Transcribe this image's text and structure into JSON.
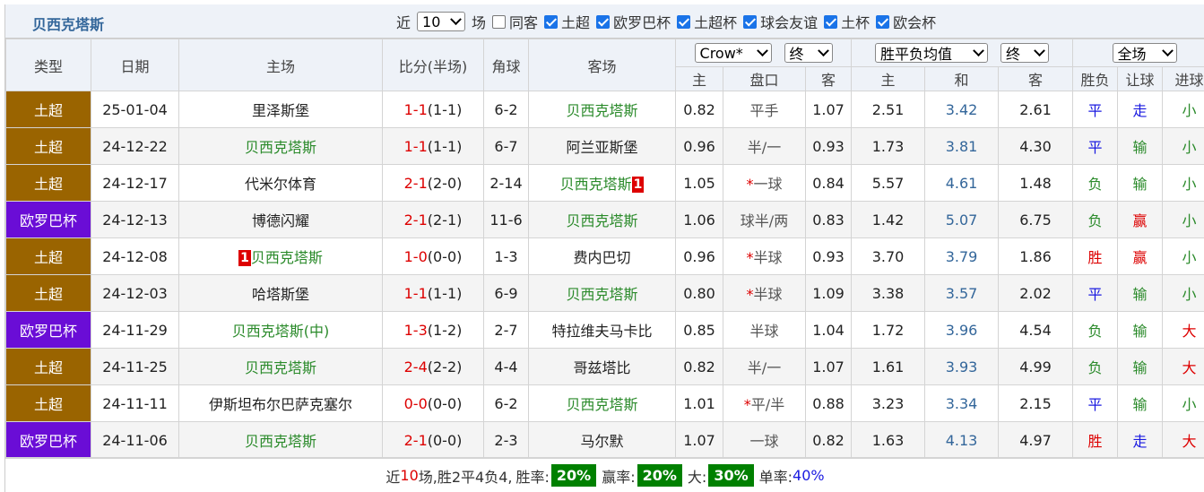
{
  "header": {
    "title": "贝西克塔斯",
    "near": "近",
    "count": "10",
    "unit": "场",
    "filters": [
      {
        "label": "同客",
        "checked": false
      },
      {
        "label": "土超",
        "checked": true
      },
      {
        "label": "欧罗巴杯",
        "checked": true
      },
      {
        "label": "土超杯",
        "checked": true
      },
      {
        "label": "球会友谊",
        "checked": true
      },
      {
        "label": "土杯",
        "checked": true
      },
      {
        "label": "欧会杯",
        "checked": true
      }
    ]
  },
  "columns": {
    "main": [
      "类型",
      "日期",
      "主场",
      "比分(半场)",
      "角球",
      "客场"
    ],
    "selects": {
      "company": "Crow*",
      "odds_state": "终",
      "average": "胜平负均值",
      "average_state": "终",
      "scope": "全场"
    },
    "sub": [
      "主",
      "盘口",
      "客",
      "主",
      "和",
      "客",
      "胜负",
      "让球",
      "进球"
    ]
  },
  "rows": [
    {
      "league": "土超",
      "date": "25-01-04",
      "home": "里泽斯堡",
      "score": "1-1",
      "half": "(1-1)",
      "corner": "6-2",
      "away": "贝西克塔斯",
      "odds_home": "0.82",
      "handicap": "平手",
      "odds_away": "1.07",
      "avg_home": "2.51",
      "avg_draw": "3.42",
      "avg_away": "2.61",
      "result": "平",
      "handicap_result": "走",
      "goals_result": "小"
    },
    {
      "league": "土超",
      "date": "24-12-22",
      "home": "贝西克塔斯",
      "score": "1-1",
      "half": "(1-1)",
      "corner": "6-7",
      "away": "阿兰亚斯堡",
      "odds_home": "0.96",
      "handicap": "半/一",
      "odds_away": "0.93",
      "avg_home": "1.73",
      "avg_draw": "3.81",
      "avg_away": "4.30",
      "result": "平",
      "handicap_result": "输",
      "goals_result": "小"
    },
    {
      "league": "土超",
      "date": "24-12-17",
      "home": "代米尔体育",
      "score": "2-1",
      "half": "(2-0)",
      "corner": "2-14",
      "away": "贝西克塔斯",
      "away_red": "1",
      "odds_home": "1.05",
      "handicap_mark": "*",
      "handicap": "一球",
      "odds_away": "0.84",
      "avg_home": "5.57",
      "avg_draw": "4.61",
      "avg_away": "1.48",
      "result": "负",
      "handicap_result": "输",
      "goals_result": "小"
    },
    {
      "league": "欧罗巴杯",
      "date": "24-12-13",
      "home": "博德闪耀",
      "score": "2-1",
      "half": "(2-1)",
      "corner": "11-6",
      "away": "贝西克塔斯",
      "odds_home": "1.06",
      "handicap": "球半/两",
      "odds_away": "0.83",
      "avg_home": "1.42",
      "avg_draw": "5.07",
      "avg_away": "6.75",
      "result": "负",
      "handicap_result": "赢",
      "goals_result": "小"
    },
    {
      "league": "土超",
      "date": "24-12-08",
      "home_red": "1",
      "home": "贝西克塔斯",
      "score": "1-0",
      "half": "(0-0)",
      "corner": "1-3",
      "away": "费内巴切",
      "odds_home": "0.96",
      "handicap_mark": "*",
      "handicap": "半球",
      "odds_away": "0.93",
      "avg_home": "3.70",
      "avg_draw": "3.79",
      "avg_away": "1.86",
      "result": "胜",
      "handicap_result": "赢",
      "goals_result": "小"
    },
    {
      "league": "土超",
      "date": "24-12-03",
      "home": "哈塔斯堡",
      "score": "1-1",
      "half": "(1-1)",
      "corner": "6-9",
      "away": "贝西克塔斯",
      "odds_home": "0.80",
      "handicap_mark": "*",
      "handicap": "半球",
      "odds_away": "1.09",
      "avg_home": "3.38",
      "avg_draw": "3.57",
      "avg_away": "2.02",
      "result": "平",
      "handicap_result": "输",
      "goals_result": "小"
    },
    {
      "league": "欧罗巴杯",
      "date": "24-11-29",
      "home": "贝西克塔斯(中)",
      "score": "1-3",
      "half": "(1-2)",
      "corner": "2-7",
      "away": "特拉维夫马卡比",
      "odds_home": "0.85",
      "handicap": "半球",
      "odds_away": "1.04",
      "avg_home": "1.72",
      "avg_draw": "3.96",
      "avg_away": "4.54",
      "result": "负",
      "handicap_result": "输",
      "goals_result": "大"
    },
    {
      "league": "土超",
      "date": "24-11-25",
      "home": "贝西克塔斯",
      "score": "2-4",
      "half": "(2-2)",
      "corner": "4-4",
      "away": "哥兹塔比",
      "odds_home": "0.82",
      "handicap": "半/一",
      "odds_away": "1.07",
      "avg_home": "1.61",
      "avg_draw": "3.93",
      "avg_away": "4.99",
      "result": "负",
      "handicap_result": "输",
      "goals_result": "大"
    },
    {
      "league": "土超",
      "date": "24-11-11",
      "home": "伊斯坦布尔巴萨克塞尔",
      "score": "0-0",
      "half": "(0-0)",
      "corner": "6-2",
      "away": "贝西克塔斯",
      "odds_home": "1.01",
      "handicap_mark": "*",
      "handicap": "平/半",
      "odds_away": "0.88",
      "avg_home": "3.23",
      "avg_draw": "3.34",
      "avg_away": "2.15",
      "result": "平",
      "handicap_result": "输",
      "goals_result": "小"
    },
    {
      "league": "欧罗巴杯",
      "date": "24-11-06",
      "home": "贝西克塔斯",
      "score": "2-1",
      "half": "(0-0)",
      "corner": "2-3",
      "away": "马尔默",
      "odds_home": "1.07",
      "handicap": "一球",
      "odds_away": "0.82",
      "avg_home": "1.63",
      "avg_draw": "4.13",
      "avg_away": "4.97",
      "result": "胜",
      "handicap_result": "走",
      "goals_result": "大"
    }
  ],
  "footer": {
    "near": "近",
    "count": "10",
    "summary": "场,胜2平4负4,",
    "stats": [
      {
        "label": "胜率:",
        "value": "20%"
      },
      {
        "label": "赢率:",
        "value": "20%"
      },
      {
        "label": "大:",
        "value": "30%"
      },
      {
        "label": "单率:",
        "value": "40%"
      }
    ]
  }
}
